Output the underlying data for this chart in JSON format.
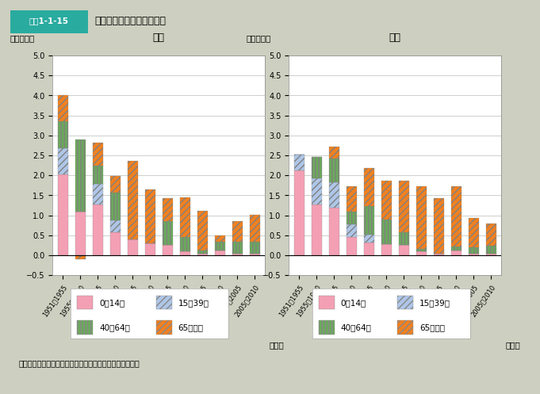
{
  "title_box": "図表1-1-15",
  "title_text": "平均寿命の延びの要因分解",
  "bg_color": "#cdd0c0",
  "plot_bg": "#ffffff",
  "ylabel": "延び（年）",
  "xlabel": "（年）",
  "categories": [
    "1951～1955",
    "1955～1960",
    "1960～1965",
    "1965～1970",
    "1970～1975",
    "1975～1980",
    "1980～1985",
    "1985～1990",
    "1990～1995",
    "1995～2000",
    "2000～2005",
    "2005～2010"
  ],
  "male": {
    "title": "男性",
    "age0_14": [
      2.02,
      1.1,
      1.27,
      0.58,
      0.4,
      0.3,
      0.25,
      0.1,
      0.05,
      0.12,
      0.05,
      0.05
    ],
    "age15_39": [
      0.65,
      0.0,
      0.52,
      0.3,
      0.0,
      0.0,
      0.0,
      0.0,
      0.0,
      0.0,
      0.0,
      0.0
    ],
    "age40_64": [
      0.68,
      1.8,
      0.45,
      0.68,
      0.0,
      0.0,
      0.6,
      0.35,
      0.07,
      0.22,
      0.28,
      0.28
    ],
    "age65plus": [
      0.65,
      -0.1,
      0.58,
      0.42,
      1.97,
      1.35,
      0.57,
      1.0,
      1.0,
      0.15,
      0.52,
      0.68
    ]
  },
  "female": {
    "title": "女性",
    "age0_14": [
      2.12,
      1.28,
      1.2,
      0.45,
      0.32,
      0.27,
      0.25,
      0.1,
      0.05,
      0.12,
      0.05,
      0.05
    ],
    "age15_39": [
      0.4,
      0.65,
      0.62,
      0.32,
      0.2,
      0.0,
      0.0,
      0.0,
      0.0,
      0.0,
      0.0,
      0.0
    ],
    "age40_64": [
      0.0,
      0.53,
      0.6,
      0.33,
      0.72,
      0.62,
      0.32,
      0.05,
      0.0,
      0.1,
      0.15,
      0.18
    ],
    "age65plus": [
      0.0,
      0.0,
      0.3,
      0.62,
      0.95,
      0.98,
      1.3,
      1.57,
      1.37,
      1.5,
      0.73,
      0.57
    ]
  },
  "colors": {
    "age0_14": "#f4a0b4",
    "age15_39": "#aec6e8",
    "age40_64": "#6aaa5a",
    "age65plus": "#f08020"
  },
  "ylim": [
    -0.5,
    5.0
  ],
  "yticks": [
    -0.5,
    0.0,
    0.5,
    1.0,
    1.5,
    2.0,
    2.5,
    3.0,
    3.5,
    4.0,
    4.5,
    5.0
  ],
  "source": "資料：国立社会保障・人口問題研究所「人口統計資料集」",
  "legend_labels": [
    "0～14歳",
    "15～39歳",
    "40～64歳",
    "65歳以上"
  ]
}
